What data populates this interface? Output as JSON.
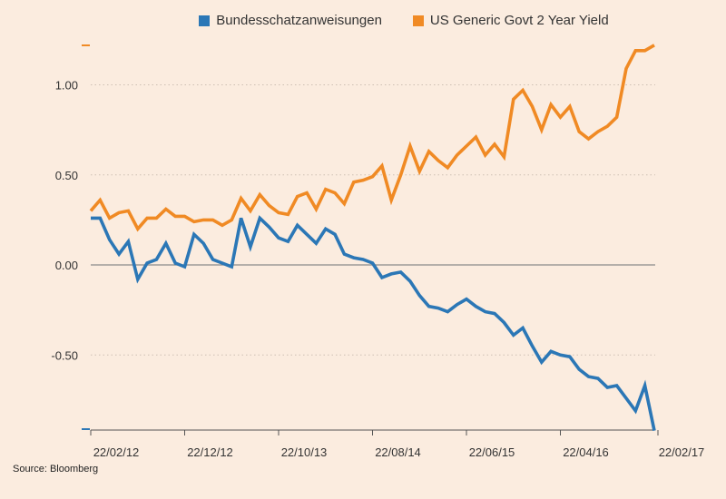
{
  "chart_data": {
    "type": "line",
    "xlabel": "",
    "ylabel": "",
    "x_tick_labels": [
      "22/02/12",
      "22/12/12",
      "22/10/13",
      "22/08/14",
      "22/06/15",
      "22/04/16",
      "22/02/17"
    ],
    "y_tick_labels": [
      "1.00",
      "0.50",
      "0.00",
      "-0.50"
    ],
    "y_ticks": [
      1.0,
      0.5,
      0.0,
      -0.5
    ],
    "ylim": [
      -0.92,
      1.22
    ],
    "grid": "horizontal dotted",
    "legend_position": "top",
    "source": "Source: Bloomberg",
    "series": [
      {
        "name": "Bundesschatzanweisungen",
        "color": "#2b77b6",
        "values": [
          0.26,
          0.26,
          0.14,
          0.06,
          0.13,
          -0.08,
          0.01,
          0.03,
          0.12,
          0.01,
          -0.01,
          0.17,
          0.12,
          0.03,
          0.01,
          -0.01,
          0.26,
          0.1,
          0.26,
          0.21,
          0.15,
          0.13,
          0.22,
          0.17,
          0.12,
          0.2,
          0.17,
          0.06,
          0.04,
          0.03,
          0.01,
          -0.07,
          -0.05,
          -0.04,
          -0.09,
          -0.17,
          -0.23,
          -0.24,
          -0.26,
          -0.22,
          -0.19,
          -0.23,
          -0.26,
          -0.27,
          -0.32,
          -0.39,
          -0.35,
          -0.45,
          -0.54,
          -0.48,
          -0.5,
          -0.51,
          -0.58,
          -0.62,
          -0.63,
          -0.68,
          -0.67,
          -0.74,
          -0.81,
          -0.67,
          -0.92
        ]
      },
      {
        "name": "US Generic Govt 2 Year Yield",
        "color": "#f08a24",
        "values": [
          0.3,
          0.36,
          0.26,
          0.29,
          0.3,
          0.2,
          0.26,
          0.26,
          0.31,
          0.27,
          0.27,
          0.24,
          0.25,
          0.25,
          0.22,
          0.25,
          0.37,
          0.3,
          0.39,
          0.33,
          0.29,
          0.28,
          0.38,
          0.4,
          0.31,
          0.42,
          0.4,
          0.34,
          0.46,
          0.47,
          0.49,
          0.55,
          0.36,
          0.5,
          0.66,
          0.52,
          0.63,
          0.58,
          0.54,
          0.61,
          0.66,
          0.71,
          0.61,
          0.67,
          0.6,
          0.92,
          0.97,
          0.88,
          0.75,
          0.89,
          0.82,
          0.88,
          0.74,
          0.7,
          0.74,
          0.77,
          0.82,
          1.09,
          1.19,
          1.19,
          1.22
        ]
      }
    ]
  }
}
